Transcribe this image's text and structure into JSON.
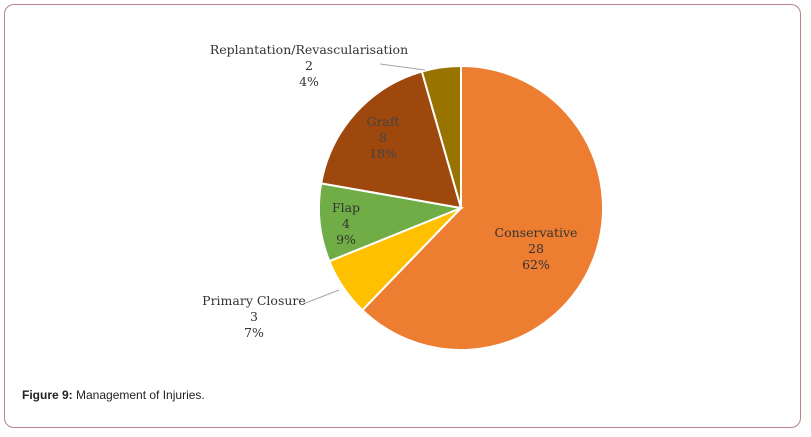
{
  "chart_data": {
    "type": "pie",
    "slices": [
      {
        "name": "Conservative",
        "value": 28,
        "percent": "62%",
        "color": "#ED7D31"
      },
      {
        "name": "Primary Closure",
        "value": 3,
        "percent": "7%",
        "color": "#FFC000"
      },
      {
        "name": "Flap",
        "value": 4,
        "percent": "9%",
        "color": "#70AD47"
      },
      {
        "name": "Graft",
        "value": 8,
        "percent": "18%",
        "color": "#9E480E"
      },
      {
        "name": "Replantation/Revascularisation",
        "value": 2,
        "percent": "4%",
        "color": "#997300"
      }
    ]
  },
  "caption": {
    "prefix": "Figure 9:",
    "text": " Management of Injuries."
  }
}
